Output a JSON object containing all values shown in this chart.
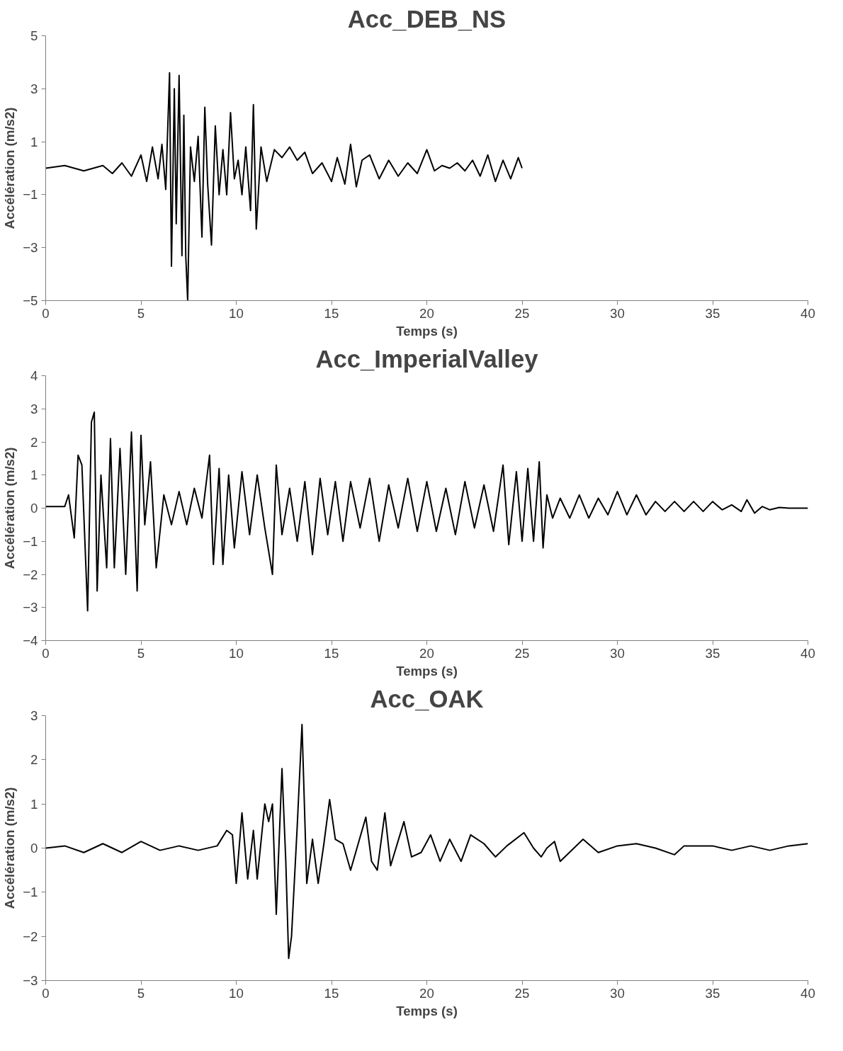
{
  "chart_data": [
    {
      "type": "line",
      "title": "Acc_DEB_NS",
      "xlabel": "Temps (s)",
      "ylabel": "Accélération (m/s2)",
      "xlim": [
        0,
        40
      ],
      "ylim": [
        -5,
        5
      ],
      "xticks": [
        0,
        5,
        10,
        15,
        20,
        25,
        30,
        35,
        40
      ],
      "yticks": [
        -5,
        -3,
        -1,
        1,
        3,
        5
      ],
      "grid": false,
      "marker": "none",
      "line_style": "solid",
      "x": [
        0,
        1,
        2,
        3,
        3.5,
        4,
        4.5,
        5,
        5.3,
        5.6,
        5.9,
        6.1,
        6.3,
        6.5,
        6.6,
        6.75,
        6.85,
        7.0,
        7.15,
        7.25,
        7.35,
        7.45,
        7.6,
        7.8,
        8.0,
        8.2,
        8.35,
        8.5,
        8.7,
        8.9,
        9.1,
        9.3,
        9.5,
        9.7,
        9.9,
        10.1,
        10.3,
        10.5,
        10.75,
        10.9,
        11.05,
        11.3,
        11.6,
        12.0,
        12.4,
        12.8,
        13.2,
        13.6,
        14.0,
        14.5,
        15.0,
        15.3,
        15.7,
        16.0,
        16.3,
        16.6,
        17.0,
        17.5,
        18.0,
        18.5,
        19.0,
        19.5,
        20.0,
        20.4,
        20.8,
        21.2,
        21.6,
        22.0,
        22.4,
        22.8,
        23.2,
        23.6,
        24.0,
        24.4,
        24.8,
        25.0
      ],
      "series": [
        {
          "color": "#000000",
          "values": [
            0,
            0.1,
            -0.1,
            0.1,
            -0.2,
            0.2,
            -0.3,
            0.5,
            -0.5,
            0.8,
            -0.4,
            0.9,
            -0.8,
            3.6,
            -3.7,
            3.0,
            -2.1,
            3.5,
            -3.3,
            2.0,
            -3.3,
            -5.0,
            0.8,
            -0.5,
            1.2,
            -2.6,
            2.3,
            -0.6,
            -2.9,
            1.6,
            -1.0,
            0.7,
            -1.0,
            2.1,
            -0.4,
            0.3,
            -1.0,
            0.8,
            -1.6,
            2.4,
            -2.3,
            0.8,
            -0.5,
            0.7,
            0.4,
            0.8,
            0.3,
            0.6,
            -0.2,
            0.2,
            -0.5,
            0.4,
            -0.6,
            0.9,
            -0.7,
            0.3,
            0.5,
            -0.4,
            0.3,
            -0.3,
            0.2,
            -0.2,
            0.7,
            -0.1,
            0.1,
            0,
            0.2,
            -0.1,
            0.3,
            -0.3,
            0.5,
            -0.5,
            0.3,
            -0.4,
            0.4,
            0.0
          ]
        }
      ]
    },
    {
      "type": "line",
      "title": "Acc_ImperialValley",
      "xlabel": "Temps (s)",
      "ylabel": "Accélération (m/s2)",
      "xlim": [
        0,
        40
      ],
      "ylim": [
        -4,
        4
      ],
      "xticks": [
        0,
        5,
        10,
        15,
        20,
        25,
        30,
        35,
        40
      ],
      "yticks": [
        -4,
        -3,
        -2,
        -1,
        0,
        1,
        2,
        3,
        4
      ],
      "grid": false,
      "marker": "none",
      "line_style": "solid",
      "x": [
        0,
        1,
        1.2,
        1.5,
        1.7,
        1.9,
        2.2,
        2.4,
        2.55,
        2.7,
        2.9,
        3.2,
        3.4,
        3.6,
        3.9,
        4.2,
        4.5,
        4.8,
        5.0,
        5.2,
        5.5,
        5.8,
        6.2,
        6.6,
        7.0,
        7.4,
        7.8,
        8.2,
        8.6,
        8.8,
        9.1,
        9.3,
        9.6,
        9.9,
        10.3,
        10.7,
        11.1,
        11.5,
        11.9,
        12.1,
        12.4,
        12.8,
        13.2,
        13.6,
        14.0,
        14.4,
        14.8,
        15.2,
        15.6,
        16.0,
        16.5,
        17,
        17.5,
        18,
        18.5,
        19,
        19.5,
        20,
        20.5,
        21,
        21.5,
        22,
        22.5,
        23,
        23.5,
        24,
        24.3,
        24.7,
        25,
        25.3,
        25.6,
        25.9,
        26.1,
        26.3,
        26.6,
        27,
        27.5,
        28,
        28.5,
        29,
        29.5,
        30,
        30.5,
        31,
        31.5,
        32,
        32.5,
        33,
        33.5,
        34,
        34.5,
        35,
        35.5,
        36,
        36.5,
        36.8,
        37.2,
        37.6,
        38,
        38.5,
        39,
        40
      ],
      "series": [
        {
          "color": "#000000",
          "values": [
            0.05,
            0.05,
            0.4,
            -0.9,
            1.6,
            1.3,
            -3.1,
            2.6,
            2.9,
            -2.5,
            1.0,
            -1.8,
            2.1,
            -1.8,
            1.8,
            -2.0,
            2.3,
            -2.5,
            2.2,
            -0.5,
            1.4,
            -1.8,
            0.4,
            -0.5,
            0.5,
            -0.5,
            0.6,
            -0.3,
            1.6,
            -1.7,
            1.2,
            -1.7,
            1.0,
            -1.2,
            1.1,
            -0.8,
            1.0,
            -0.6,
            -2.0,
            1.3,
            -0.8,
            0.6,
            -1.0,
            0.8,
            -1.4,
            0.9,
            -0.8,
            0.8,
            -1.0,
            0.8,
            -0.6,
            0.9,
            -1.0,
            0.7,
            -0.6,
            0.9,
            -0.7,
            0.8,
            -0.7,
            0.6,
            -0.8,
            0.8,
            -0.6,
            0.7,
            -0.7,
            1.3,
            -1.1,
            1.1,
            -1.0,
            1.2,
            -1.0,
            1.4,
            -1.2,
            0.4,
            -0.3,
            0.3,
            -0.3,
            0.4,
            -0.3,
            0.3,
            -0.2,
            0.5,
            -0.2,
            0.4,
            -0.2,
            0.2,
            -0.1,
            0.2,
            -0.1,
            0.2,
            -0.1,
            0.2,
            -0.05,
            0.1,
            -0.1,
            0.25,
            -0.15,
            0.05,
            -0.05,
            0.02,
            0.0,
            0.0
          ]
        }
      ]
    },
    {
      "type": "line",
      "title": "Acc_OAK",
      "xlabel": "Temps (s)",
      "ylabel": "Accélération (m/s2)",
      "xlim": [
        0,
        40
      ],
      "ylim": [
        -3,
        3
      ],
      "xticks": [
        0,
        5,
        10,
        15,
        20,
        25,
        30,
        35,
        40
      ],
      "yticks": [
        -3,
        -2,
        -1,
        0,
        1,
        2,
        3
      ],
      "grid": false,
      "marker": "none",
      "line_style": "solid",
      "x": [
        0,
        1,
        2,
        3,
        4,
        5,
        6,
        7,
        8,
        9,
        9.5,
        9.8,
        10.0,
        10.3,
        10.6,
        10.9,
        11.1,
        11.5,
        11.7,
        11.9,
        12.1,
        12.4,
        12.6,
        12.75,
        12.9,
        13.2,
        13.45,
        13.7,
        14.0,
        14.3,
        14.6,
        14.9,
        15.2,
        15.6,
        16.0,
        16.8,
        17.1,
        17.4,
        17.8,
        18.1,
        18.8,
        19.2,
        19.7,
        20.2,
        20.7,
        21.2,
        21.8,
        22.3,
        23,
        23.6,
        24.2,
        25.1,
        25.6,
        26.0,
        26.3,
        26.7,
        27.0,
        28.2,
        29,
        30,
        31,
        32,
        33,
        33.5,
        35,
        36,
        37,
        38,
        39,
        40
      ],
      "series": [
        {
          "color": "#000000",
          "values": [
            0,
            0.05,
            -0.1,
            0.1,
            -0.1,
            0.15,
            -0.05,
            0.05,
            -0.05,
            0.05,
            0.4,
            0.3,
            -0.8,
            0.8,
            -0.7,
            0.4,
            -0.7,
            1.0,
            0.6,
            1.0,
            -1.5,
            1.8,
            -0.3,
            -2.5,
            -2.0,
            0.5,
            2.8,
            -0.8,
            0.2,
            -0.8,
            0.1,
            1.1,
            0.2,
            0.1,
            -0.5,
            0.7,
            -0.3,
            -0.5,
            0.8,
            -0.4,
            0.6,
            -0.2,
            -0.1,
            0.3,
            -0.3,
            0.2,
            -0.3,
            0.3,
            0.1,
            -0.2,
            0.05,
            0.35,
            0,
            -0.2,
            0,
            0.15,
            -0.3,
            0.2,
            -0.1,
            0.05,
            0.1,
            0,
            -0.15,
            0.05,
            0.05,
            -0.05,
            0.05,
            -0.05,
            0.05,
            0.1
          ]
        }
      ]
    }
  ]
}
